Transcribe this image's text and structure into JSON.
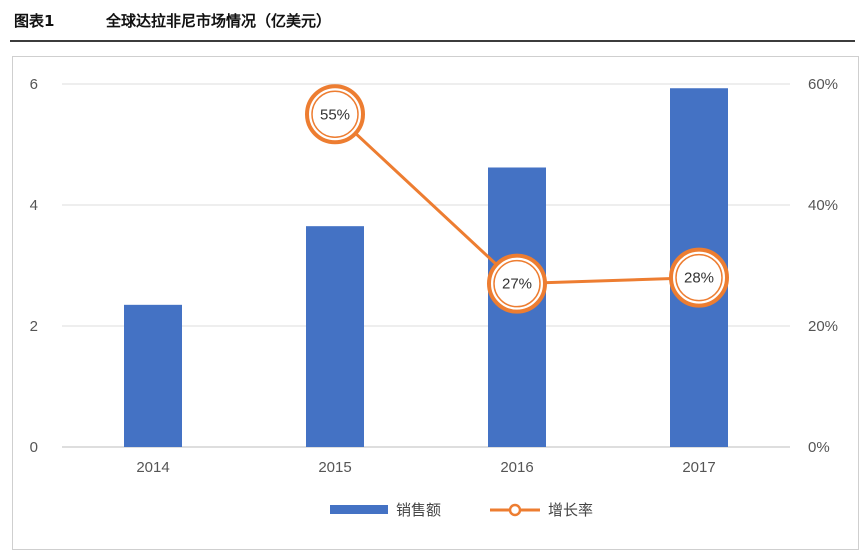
{
  "header": {
    "figure_no": "图表1",
    "title": "全球达拉非尼市场情况（亿美元）"
  },
  "chart_data": {
    "type": "bar",
    "categories": [
      "2014",
      "2015",
      "2016",
      "2017"
    ],
    "series": [
      {
        "name": "销售额",
        "type": "bar",
        "axis": "left",
        "values": [
          2.35,
          3.65,
          4.62,
          5.93
        ],
        "color": "#4472c4"
      },
      {
        "name": "增长率",
        "type": "line",
        "axis": "right",
        "values": [
          null,
          0.55,
          0.27,
          0.28
        ],
        "labels": [
          "",
          "55%",
          "27%",
          "28%"
        ],
        "color": "#ed7d31"
      }
    ],
    "y_left": {
      "ticks": [
        "0",
        "2",
        "4",
        "6"
      ],
      "range": [
        0,
        6
      ]
    },
    "y_right": {
      "ticks": [
        "0%",
        "20%",
        "40%",
        "60%"
      ],
      "range": [
        0,
        0.6
      ]
    },
    "grid": true,
    "legend_position": "bottom"
  }
}
